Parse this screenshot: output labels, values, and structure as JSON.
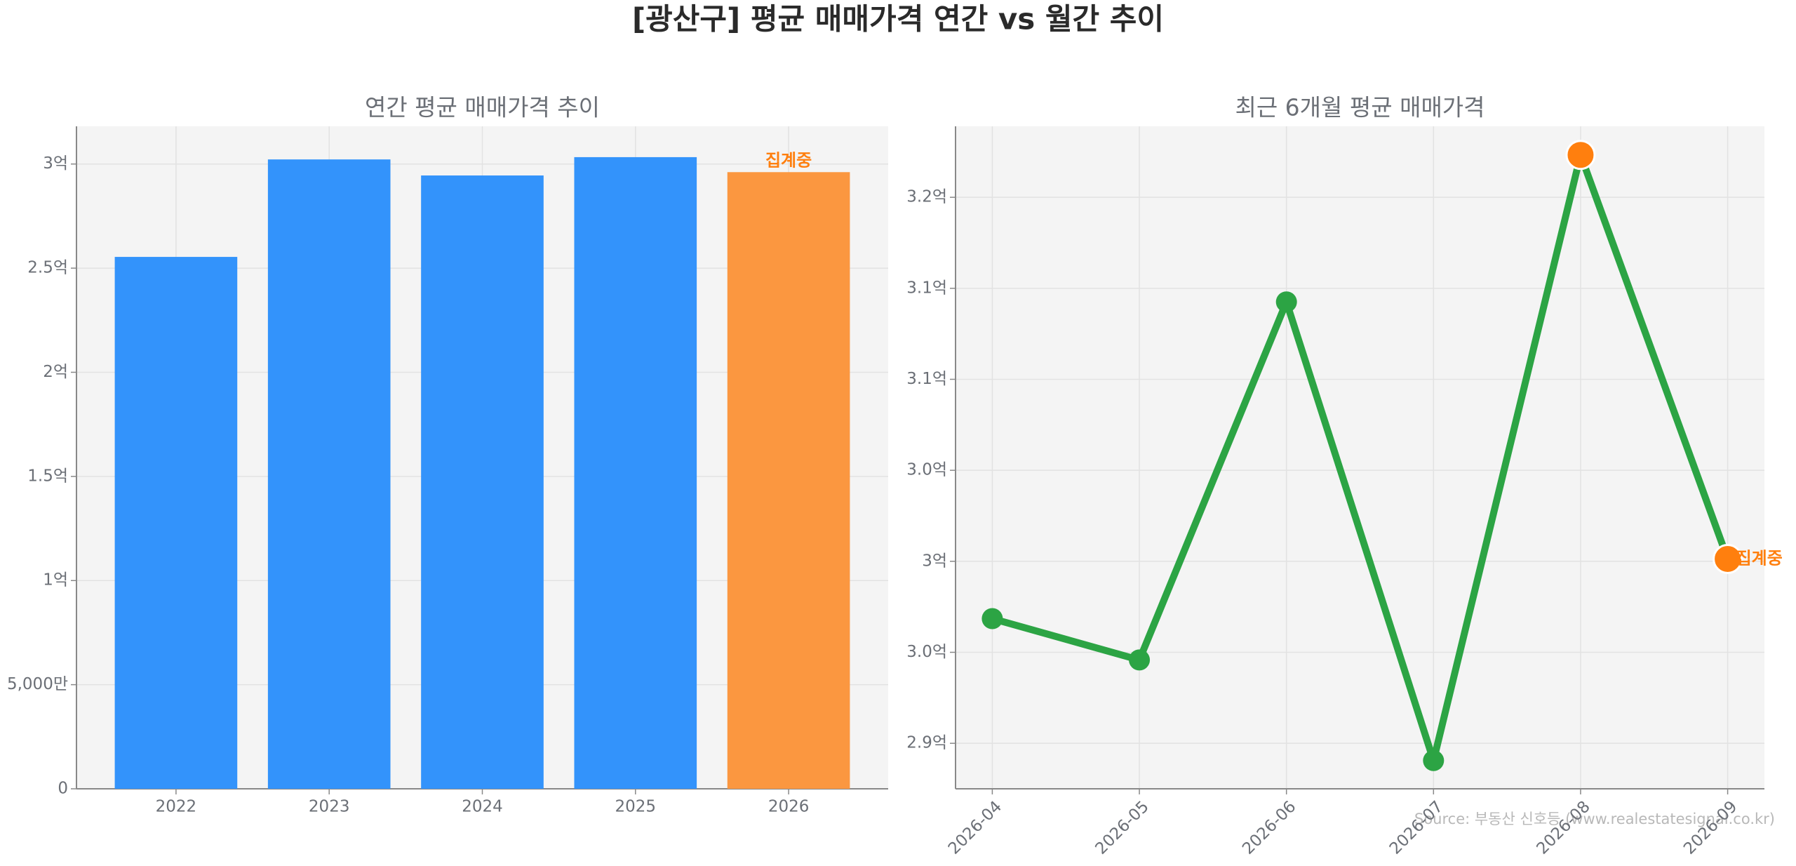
{
  "title": "[광산구] 평균 매매가격 연간 vs 월간 추이",
  "source": "Source: 부동산 신호등 (www.realestatesignal.co.kr)",
  "chart_data": [
    {
      "type": "bar",
      "title": "연간 평균 매매가격 추이",
      "categories": [
        "2022",
        "2023",
        "2024",
        "2025",
        "2026"
      ],
      "values": [
        255400000,
        302200000,
        294500000,
        303300000,
        296100000
      ],
      "colors": [
        "#3393fb",
        "#3393fb",
        "#3393fb",
        "#3393fb",
        "#fb9740"
      ],
      "annotation": {
        "text": "집계중",
        "index": 4
      },
      "ylim": [
        0,
        318100000
      ],
      "yticks": [
        0,
        {
          "value": 50000000,
          "label": "5,000만"
        },
        {
          "value": 100000000,
          "label": "1억"
        },
        {
          "value": 150000000,
          "label": "1.5억"
        },
        {
          "value": 200000000,
          "label": "2억"
        },
        {
          "value": 250000000,
          "label": "2.5억"
        },
        {
          "value": 300000000,
          "label": "3억"
        }
      ],
      "grid": true
    },
    {
      "type": "line",
      "title": "최근 6개월 평균 매매가격",
      "categories": [
        "2026-04",
        "2026-05",
        "2026-06",
        "2026-07",
        "2026-08",
        "2026-09"
      ],
      "series": [
        {
          "name": "평균 매매가격",
          "color": "#2ca444",
          "values": [
            296850000,
            294580000,
            314250000,
            289050000,
            322330000,
            300130000
          ],
          "marker_colors": [
            "#2ca444",
            "#2ca444",
            "#2ca444",
            "#2ca444",
            "#ff7f0e",
            "#ff7f0e"
          ]
        }
      ],
      "annotation": {
        "text": "집계중",
        "index": 5
      },
      "ylim": [
        287500000,
        323900000
      ],
      "yticks": [
        {
          "value": 290000000,
          "label": "2.9억"
        },
        {
          "value": 295000000,
          "label": "3.0억"
        },
        {
          "value": 300000000,
          "label": "3억"
        },
        {
          "value": 305000000,
          "label": "3.0억"
        },
        {
          "value": 310000000,
          "label": "3.1억"
        },
        {
          "value": 315000000,
          "label": "3.1억"
        },
        {
          "value": 320000000,
          "label": "3.2억"
        }
      ],
      "grid": true
    }
  ]
}
